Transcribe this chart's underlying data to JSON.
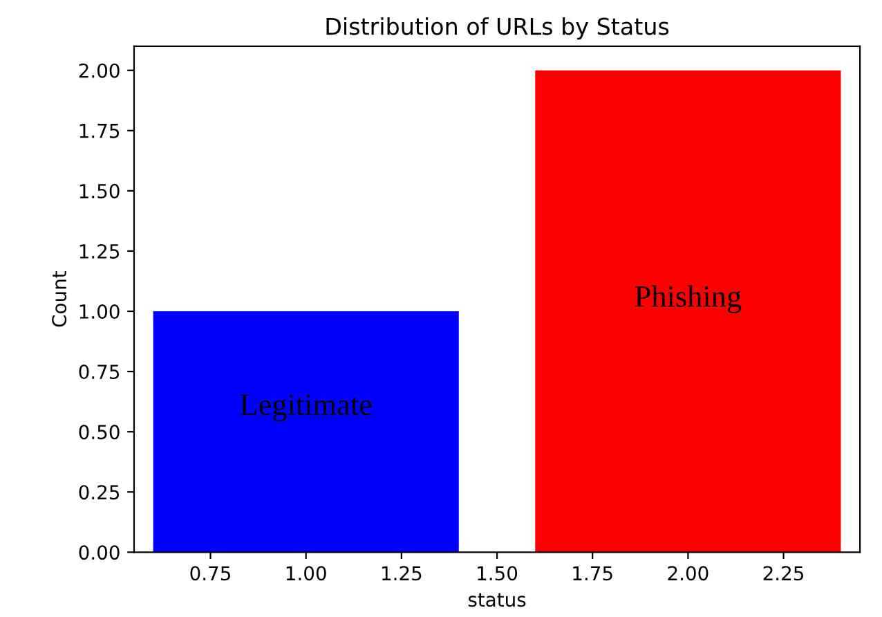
{
  "chart_data": {
    "type": "bar",
    "title": "Distribution of URLs by Status",
    "xlabel": "status",
    "ylabel": "Count",
    "x": [
      1,
      2
    ],
    "values": [
      1,
      2
    ],
    "colors": [
      "#0000ff",
      "#ff0000"
    ],
    "xlim": [
      0.55,
      2.45
    ],
    "xticks": [
      {
        "value": 0.75,
        "label": "0.75"
      },
      {
        "value": 1.0,
        "label": "1.00"
      },
      {
        "value": 1.25,
        "label": "1.25"
      },
      {
        "value": 1.5,
        "label": "1.50"
      },
      {
        "value": 1.75,
        "label": "1.75"
      },
      {
        "value": 2.0,
        "label": "2.00"
      },
      {
        "value": 2.25,
        "label": "2.25"
      }
    ],
    "ylim": [
      0,
      2.1
    ],
    "yticks": [
      {
        "value": 0,
        "label": "0.00"
      },
      {
        "value": 0.25,
        "label": "0.25"
      },
      {
        "value": 0.5,
        "label": "0.50"
      },
      {
        "value": 0.75,
        "label": "0.75"
      },
      {
        "value": 1.0,
        "label": "1.00"
      },
      {
        "value": 1.25,
        "label": "1.25"
      },
      {
        "value": 1.5,
        "label": "1.50"
      },
      {
        "value": 1.75,
        "label": "1.75"
      },
      {
        "value": 2.0,
        "label": "2.00"
      }
    ],
    "annotations": [
      "Legitimate",
      "Phishing"
    ],
    "grid": false
  }
}
